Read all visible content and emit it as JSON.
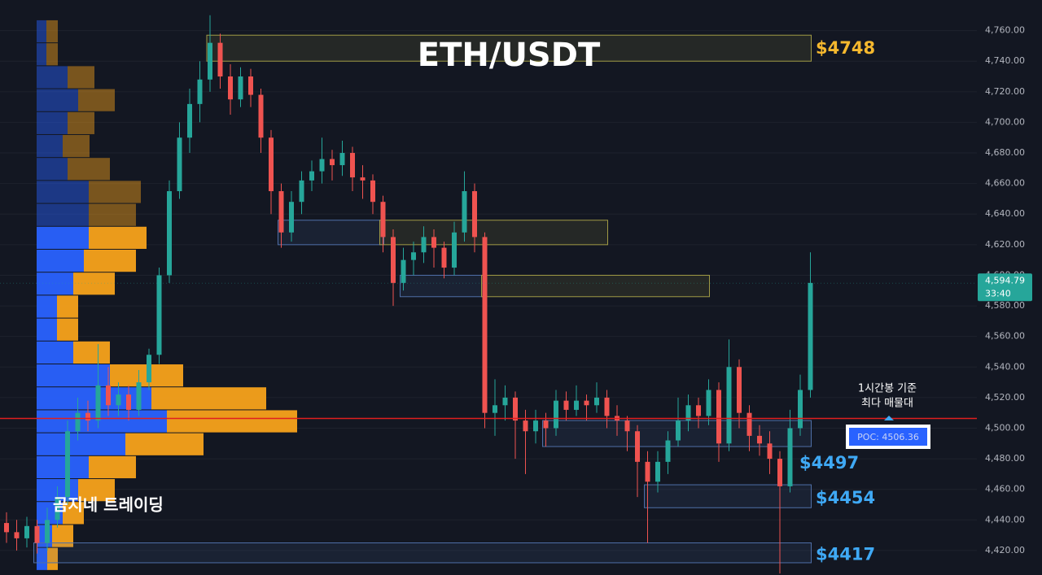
{
  "chart_data": {
    "type": "candlestick",
    "title": "ETH/USDT",
    "watermark": "곰지네 트레이딩",
    "up_color": "#26a69a",
    "down_color": "#ef5350",
    "ylim": [
      4404,
      4780
    ],
    "yticks": [
      {
        "value": 4420,
        "label": "4,420.00"
      },
      {
        "value": 4440,
        "label": "4,440.00"
      },
      {
        "value": 4460,
        "label": "4,460.00"
      },
      {
        "value": 4480,
        "label": "4,480.00"
      },
      {
        "value": 4500,
        "label": "4,500.00"
      },
      {
        "value": 4520,
        "label": "4,520.00"
      },
      {
        "value": 4540,
        "label": "4,540.00"
      },
      {
        "value": 4560,
        "label": "4,560.00"
      },
      {
        "value": 4580,
        "label": "4,580.00"
      },
      {
        "value": 4600,
        "label": "4,600.00"
      },
      {
        "value": 4620,
        "label": "4,620.00"
      },
      {
        "value": 4640,
        "label": "4,640.00"
      },
      {
        "value": 4660,
        "label": "4,660.00"
      },
      {
        "value": 4680,
        "label": "4,680.00"
      },
      {
        "value": 4700,
        "label": "4,700.00"
      },
      {
        "value": 4720,
        "label": "4,720.00"
      },
      {
        "value": 4740,
        "label": "4,740.00"
      },
      {
        "value": 4760,
        "label": "4,760.00"
      }
    ],
    "grid": true,
    "candles": [
      [
        4438,
        4445,
        4425,
        4432
      ],
      [
        4432,
        4440,
        4420,
        4428
      ],
      [
        4428,
        4442,
        4422,
        4436
      ],
      [
        4436,
        4440,
        4418,
        4425
      ],
      [
        4425,
        4448,
        4420,
        4440
      ],
      [
        4440,
        4462,
        4435,
        4455
      ],
      [
        4455,
        4505,
        4450,
        4498
      ],
      [
        4498,
        4520,
        4492,
        4510
      ],
      [
        4510,
        4518,
        4498,
        4505
      ],
      [
        4505,
        4555,
        4500,
        4528
      ],
      [
        4528,
        4540,
        4508,
        4515
      ],
      [
        4515,
        4530,
        4508,
        4522
      ],
      [
        4522,
        4528,
        4505,
        4512
      ],
      [
        4512,
        4538,
        4508,
        4530
      ],
      [
        4530,
        4552,
        4525,
        4548
      ],
      [
        4548,
        4605,
        4542,
        4600
      ],
      [
        4600,
        4662,
        4595,
        4655
      ],
      [
        4655,
        4700,
        4650,
        4690
      ],
      [
        4690,
        4722,
        4680,
        4712
      ],
      [
        4712,
        4740,
        4700,
        4728
      ],
      [
        4728,
        4770,
        4720,
        4752
      ],
      [
        4752,
        4758,
        4722,
        4730
      ],
      [
        4730,
        4738,
        4705,
        4715
      ],
      [
        4715,
        4736,
        4710,
        4730
      ],
      [
        4730,
        4735,
        4710,
        4718
      ],
      [
        4718,
        4722,
        4680,
        4690
      ],
      [
        4690,
        4695,
        4640,
        4655
      ],
      [
        4655,
        4660,
        4618,
        4628
      ],
      [
        4628,
        4655,
        4622,
        4648
      ],
      [
        4648,
        4668,
        4640,
        4662
      ],
      [
        4662,
        4675,
        4655,
        4668
      ],
      [
        4668,
        4690,
        4660,
        4676
      ],
      [
        4676,
        4682,
        4662,
        4672
      ],
      [
        4672,
        4688,
        4665,
        4680
      ],
      [
        4680,
        4684,
        4655,
        4664
      ],
      [
        4664,
        4672,
        4650,
        4662
      ],
      [
        4662,
        4666,
        4640,
        4648
      ],
      [
        4648,
        4652,
        4615,
        4625
      ],
      [
        4625,
        4630,
        4580,
        4595
      ],
      [
        4595,
        4618,
        4590,
        4610
      ],
      [
        4610,
        4622,
        4600,
        4615
      ],
      [
        4615,
        4632,
        4608,
        4625
      ],
      [
        4625,
        4630,
        4605,
        4618
      ],
      [
        4618,
        4622,
        4598,
        4605
      ],
      [
        4605,
        4635,
        4600,
        4628
      ],
      [
        4628,
        4668,
        4622,
        4655
      ],
      [
        4655,
        4660,
        4615,
        4625
      ],
      [
        4625,
        4628,
        4500,
        4510
      ],
      [
        4510,
        4532,
        4495,
        4515
      ],
      [
        4515,
        4528,
        4505,
        4520
      ],
      [
        4520,
        4524,
        4480,
        4505
      ],
      [
        4505,
        4512,
        4470,
        4498
      ],
      [
        4498,
        4512,
        4490,
        4505
      ],
      [
        4505,
        4510,
        4488,
        4500
      ],
      [
        4500,
        4525,
        4495,
        4518
      ],
      [
        4518,
        4524,
        4505,
        4512
      ],
      [
        4512,
        4528,
        4508,
        4518
      ],
      [
        4518,
        4522,
        4505,
        4515
      ],
      [
        4515,
        4530,
        4510,
        4520
      ],
      [
        4520,
        4525,
        4500,
        4508
      ],
      [
        4508,
        4515,
        4495,
        4505
      ],
      [
        4505,
        4508,
        4485,
        4498
      ],
      [
        4498,
        4502,
        4455,
        4478
      ],
      [
        4478,
        4485,
        4425,
        4465
      ],
      [
        4465,
        4485,
        4458,
        4478
      ],
      [
        4478,
        4498,
        4470,
        4492
      ],
      [
        4492,
        4520,
        4488,
        4505
      ],
      [
        4505,
        4522,
        4498,
        4515
      ],
      [
        4515,
        4520,
        4500,
        4508
      ],
      [
        4508,
        4532,
        4502,
        4525
      ],
      [
        4525,
        4530,
        4478,
        4490
      ],
      [
        4490,
        4558,
        4485,
        4540
      ],
      [
        4540,
        4545,
        4500,
        4510
      ],
      [
        4510,
        4515,
        4485,
        4495
      ],
      [
        4495,
        4502,
        4482,
        4490
      ],
      [
        4490,
        4498,
        4470,
        4480
      ],
      [
        4480,
        4485,
        4405,
        4462
      ],
      [
        4462,
        4512,
        4458,
        4500
      ],
      [
        4500,
        4535,
        4495,
        4525
      ],
      [
        4525,
        4615,
        4520,
        4595
      ]
    ],
    "volume_profile": {
      "bins": [
        4407,
        4422,
        4437,
        4452,
        4467,
        4482,
        4497,
        4512,
        4527,
        4542,
        4557,
        4572,
        4587,
        4602,
        4617,
        4632,
        4647,
        4662,
        4677,
        4692,
        4707,
        4722,
        4737,
        4752,
        4767
      ],
      "buy": [
        13,
        19,
        32,
        51,
        64,
        109,
        160,
        141,
        90,
        45,
        25,
        25,
        45,
        58,
        64,
        64,
        64,
        38,
        32,
        38,
        51,
        38,
        12,
        12
      ],
      "sell": [
        13,
        26,
        26,
        45,
        58,
        96,
        160,
        141,
        90,
        45,
        26,
        26,
        51,
        64,
        71,
        58,
        64,
        52,
        33,
        33,
        45,
        33,
        14,
        14
      ],
      "buy_color": "#2962ff",
      "sell_color": "#f7a21b"
    },
    "zones": [
      {
        "low": 4740,
        "high": 4757,
        "start": 20,
        "end": 79,
        "color": "#a09a45"
      },
      {
        "low": 4620,
        "high": 4636,
        "start": 27,
        "end": 37,
        "color": "#4f6fa8"
      },
      {
        "low": 4620,
        "high": 4636,
        "start": 37,
        "end": 59,
        "color": "#a09a45"
      },
      {
        "low": 4586,
        "high": 4600,
        "start": 39,
        "end": 47,
        "color": "#4f6fa8"
      },
      {
        "low": 4586,
        "high": 4600,
        "start": 47,
        "end": 69,
        "color": "#a09a45"
      },
      {
        "low": 4488,
        "high": 4505,
        "start": 53,
        "end": 79,
        "color": "#4f6fa8"
      },
      {
        "low": 4448,
        "high": 4463,
        "start": 63,
        "end": 79,
        "color": "#4f6fa8"
      },
      {
        "low": 4412,
        "high": 4425,
        "start": 3,
        "end": 79,
        "color": "#4f6fa8"
      }
    ],
    "levels": [
      {
        "value": 4748,
        "label": "$4748",
        "color": "#f5b82e"
      },
      {
        "value": 4497,
        "label": "$4497",
        "color": "#3fa9f5"
      },
      {
        "value": 4454,
        "label": "$4454",
        "color": "#3fa9f5"
      },
      {
        "value": 4417,
        "label": "$4417",
        "color": "#3fa9f5"
      }
    ],
    "poc": {
      "value": 4506.36,
      "label": "POC: 4506.36",
      "color": "#e01f1f"
    },
    "annotation": [
      "1시간봉 기준",
      "최다 매물대"
    ],
    "last_price": {
      "value": 4594.79,
      "label": "4,594.79",
      "timer": "33:40"
    }
  }
}
